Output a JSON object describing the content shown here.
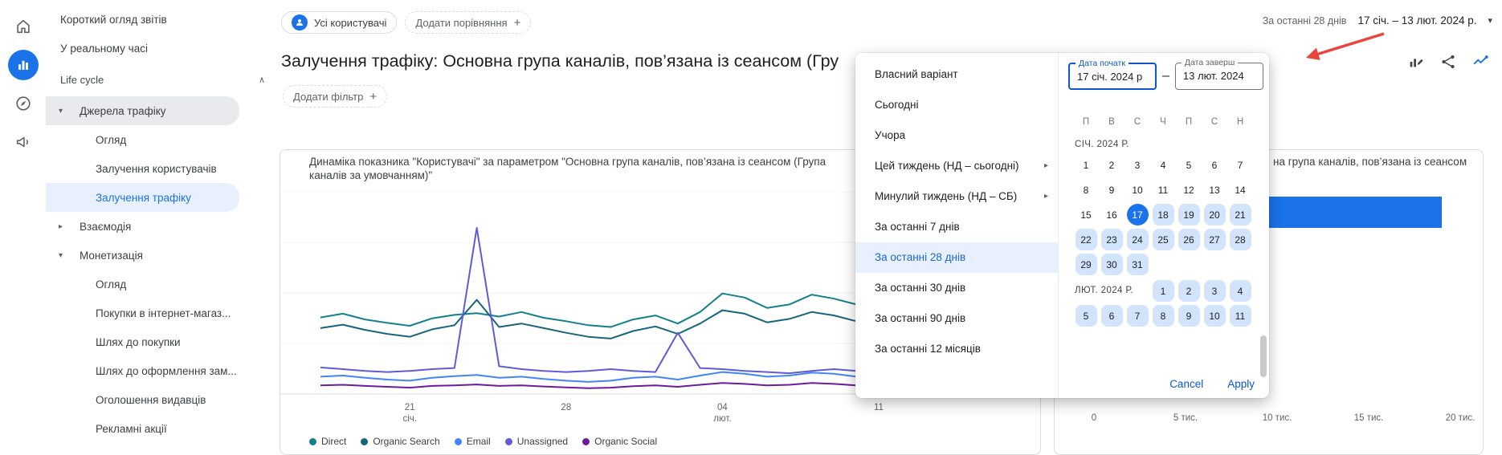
{
  "rail": {
    "icons": [
      {
        "name": "home-icon"
      },
      {
        "name": "reports-icon",
        "active": true
      },
      {
        "name": "explore-icon"
      },
      {
        "name": "advertising-icon"
      }
    ]
  },
  "sidebar": {
    "items": [
      {
        "label": "Короткий огляд звітів",
        "type": "item"
      },
      {
        "label": "У реальному часі",
        "type": "item"
      },
      {
        "label": "Life cycle",
        "type": "section"
      },
      {
        "label": "Джерела трафіку",
        "type": "group",
        "expanded": true,
        "hover": true
      },
      {
        "label": "Огляд",
        "type": "child"
      },
      {
        "label": "Залучення користувачів",
        "type": "child"
      },
      {
        "label": "Залучення трафіку",
        "type": "child",
        "selected": true
      },
      {
        "label": "Взаємодія",
        "type": "group",
        "expanded": false
      },
      {
        "label": "Монетизація",
        "type": "group",
        "expanded": true
      },
      {
        "label": "Огляд",
        "type": "child"
      },
      {
        "label": "Покупки в інтернет-магаз...",
        "type": "child"
      },
      {
        "label": "Шлях до покупки",
        "type": "child"
      },
      {
        "label": "Шлях до оформлення зам...",
        "type": "child"
      },
      {
        "label": "Оголошення видавців",
        "type": "child"
      },
      {
        "label": "Рекламні акції",
        "type": "child"
      }
    ]
  },
  "header": {
    "audience_chip": "Усі користувачі",
    "add_comparison": "Додати порівняння",
    "plus": "+",
    "date_preset": "За останні 28 днів",
    "date_range": "17 січ. – 13 лют. 2024 р."
  },
  "page": {
    "title": "Залучення трафіку: Основна група каналів, пов’язана із сеансом (Гру",
    "add_filter": "Додати фільтр"
  },
  "toolbar": {
    "icons": [
      {
        "name": "customize-report-icon"
      },
      {
        "name": "share-icon"
      },
      {
        "name": "insights-icon"
      }
    ]
  },
  "datepicker": {
    "presets": [
      {
        "label": "Власний варіант"
      },
      {
        "label": "Сьогодні"
      },
      {
        "label": "Учора"
      },
      {
        "label": "Цей тиждень (НД – сьогодні)",
        "submenu": true
      },
      {
        "label": "Минулий тиждень (НД – СБ)",
        "submenu": true
      },
      {
        "label": "За останні 7 днів"
      },
      {
        "label": "За останні 28 днів",
        "selected": true
      },
      {
        "label": "За останні 30 днів"
      },
      {
        "label": "За останні 90 днів"
      },
      {
        "label": "За останні 12 місяців"
      }
    ],
    "start_field": {
      "label": "Дата початк",
      "value": "17 січ. 2024 р"
    },
    "end_field": {
      "label": "Дата заверш",
      "value": "13 лют. 2024"
    },
    "separator": "–",
    "day_headers": [
      "П",
      "В",
      "С",
      "Ч",
      "П",
      "С",
      "Н"
    ],
    "months": [
      {
        "label": "СІЧ. 2024 Р.",
        "inline": false,
        "weeks": [
          [
            1,
            2,
            3,
            4,
            5,
            6,
            7
          ],
          [
            8,
            9,
            10,
            11,
            12,
            13,
            14
          ],
          [
            15,
            16,
            17,
            18,
            19,
            20,
            21
          ],
          [
            22,
            23,
            24,
            25,
            26,
            27,
            28
          ],
          [
            29,
            30,
            31,
            null,
            null,
            null,
            null
          ]
        ]
      },
      {
        "label": "ЛЮТ. 2024 Р.",
        "inline": true,
        "weeks": [
          [
            null,
            null,
            null,
            1,
            2,
            3,
            4
          ],
          [
            5,
            6,
            7,
            8,
            9,
            10,
            11
          ]
        ]
      }
    ],
    "selected": {
      "month": 0,
      "day": 17
    },
    "range": {
      "start": {
        "month": 0,
        "day": 17
      },
      "end": {
        "month": 1,
        "day": 13
      }
    },
    "cancel": "Cancel",
    "apply": "Apply"
  },
  "colors": {
    "accent": "#1a73e8",
    "selection_bg": "#e8f0fe",
    "range_day_bg": "#d2e3fc",
    "annotation_arrow": "#e8453c"
  },
  "chart_data": [
    {
      "type": "line",
      "title": "Динаміка показника \"Користувачі\" за параметром \"Основна група каналів, пов’язана із сеансом (Група каналів за умовчанням)\"",
      "x": [
        "17 січ.",
        "18",
        "19",
        "20",
        "21",
        "22",
        "23",
        "24",
        "25",
        "26",
        "27",
        "28",
        "29",
        "30",
        "31",
        "01 лют.",
        "02",
        "03",
        "04",
        "05",
        "06",
        "07",
        "08",
        "09",
        "10",
        "11",
        "12",
        "13"
      ],
      "x_ticks": [
        {
          "index": 4,
          "line1": "21",
          "line2": "січ."
        },
        {
          "index": 11,
          "line1": "28"
        },
        {
          "index": 18,
          "line1": "04",
          "line2": "лют."
        },
        {
          "index": 25,
          "line1": "11"
        }
      ],
      "ylim": [
        0,
        700
      ],
      "grid": true,
      "legend_position": "bottom",
      "series": [
        {
          "name": "Direct",
          "color": "#12808e",
          "values": [
            265,
            278,
            258,
            246,
            236,
            262,
            274,
            280,
            268,
            284,
            264,
            252,
            238,
            232,
            258,
            272,
            244,
            284,
            348,
            334,
            298,
            310,
            344,
            330,
            310,
            304,
            310,
            178
          ]
        },
        {
          "name": "Organic Search",
          "color": "#15667d",
          "values": [
            228,
            240,
            222,
            208,
            198,
            224,
            238,
            326,
            232,
            244,
            228,
            212,
            198,
            192,
            218,
            234,
            208,
            244,
            290,
            278,
            248,
            260,
            284,
            272,
            252,
            248,
            254,
            148
          ]
        },
        {
          "name": "Email",
          "color": "#4285f4",
          "values": [
            60,
            64,
            56,
            50,
            46,
            56,
            62,
            66,
            56,
            60,
            52,
            46,
            42,
            46,
            56,
            60,
            50,
            64,
            76,
            70,
            60,
            64,
            74,
            70,
            60,
            56,
            60,
            36
          ]
        },
        {
          "name": "Unassigned",
          "color": "#5f5bd7",
          "values": [
            92,
            86,
            80,
            76,
            80,
            86,
            90,
            575,
            96,
            86,
            80,
            76,
            80,
            86,
            80,
            76,
            212,
            90,
            86,
            80,
            76,
            72,
            80,
            86,
            80,
            76,
            80,
            54
          ]
        },
        {
          "name": "Organic Social",
          "color": "#6d1b9e",
          "values": [
            30,
            32,
            28,
            25,
            22,
            28,
            30,
            33,
            28,
            30,
            26,
            23,
            20,
            22,
            27,
            30,
            25,
            32,
            38,
            35,
            30,
            32,
            38,
            35,
            30,
            28,
            30,
            18
          ]
        }
      ]
    },
    {
      "type": "bar",
      "orientation": "horizontal",
      "title_visible": "на група каналів, пов’язана із сеансом",
      "axis_ticks": [
        "0",
        "5 тис.",
        "10 тис.",
        "15 тис.",
        "20 тис."
      ],
      "values": [
        19000
      ],
      "xlim": [
        0,
        22000
      ],
      "bar_color": "#1a73e8"
    }
  ]
}
